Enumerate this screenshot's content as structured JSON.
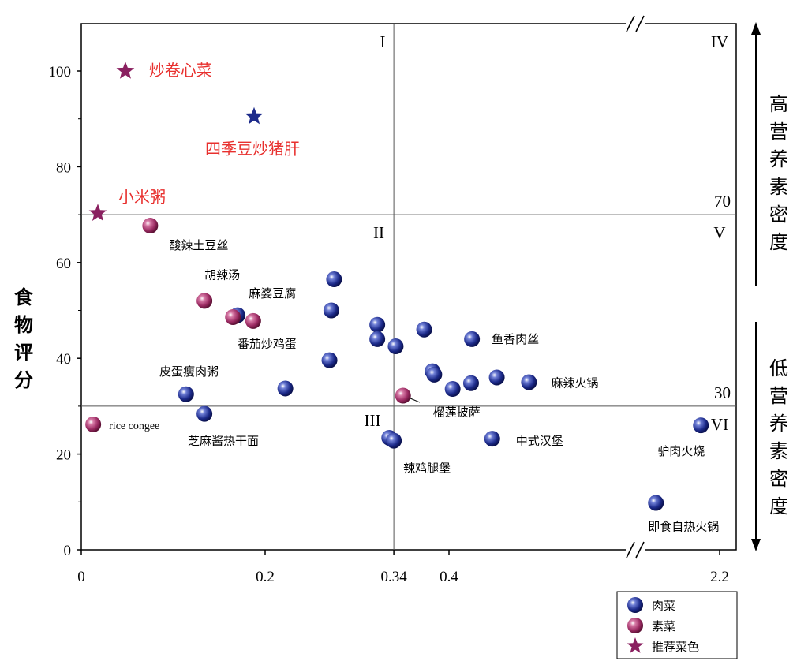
{
  "chart_data": {
    "type": "scatter",
    "title": "",
    "xlabel": "",
    "ylabel": "食物评分",
    "x_ticks": [
      "0",
      "0.2",
      "0.34",
      "0.4",
      "2.2"
    ],
    "y_ticks": [
      "0",
      "20",
      "40",
      "60",
      "80",
      "100"
    ],
    "ylim": [
      0,
      110
    ],
    "x_axis_break": {
      "after": 0.6,
      "resumes_at": 2.0
    },
    "x_threshold": 0.34,
    "y_thresholds": [
      {
        "value": 30,
        "label": "30"
      },
      {
        "value": 70,
        "label": "70"
      }
    ],
    "quadrants": [
      "I",
      "II",
      "III",
      "IV",
      "V",
      "VI"
    ],
    "side_labels": {
      "top": "高营养素密度",
      "bottom": "低营养素密度"
    },
    "colors": {
      "meat": "#1c2a8a",
      "veg": "#9b2a62",
      "recommended_red": "#e8302e",
      "star_purple": "#8a2060",
      "star_blue": "#1c2a8a"
    },
    "legend": {
      "position": "bottom-right",
      "items": [
        {
          "key": "meat",
          "label": "肉菜",
          "marker": "ball"
        },
        {
          "key": "veg",
          "label": "素菜",
          "marker": "ball"
        },
        {
          "key": "rec",
          "label": "推荐菜色",
          "marker": "star"
        }
      ]
    },
    "series": [
      {
        "name": "肉菜",
        "points": [
          {
            "x": 0.275,
            "y": 56.5
          },
          {
            "x": 0.17,
            "y": 49
          },
          {
            "x": 0.272,
            "y": 50
          },
          {
            "x": 0.322,
            "y": 47
          },
          {
            "x": 0.322,
            "y": 44
          },
          {
            "x": 0.342,
            "y": 42.5
          },
          {
            "x": 0.373,
            "y": 46
          },
          {
            "x": 0.425,
            "y": 44,
            "label": "鱼香肉丝"
          },
          {
            "x": 0.27,
            "y": 39.6
          },
          {
            "x": 0.222,
            "y": 33.7
          },
          {
            "x": 0.382,
            "y": 37.3
          },
          {
            "x": 0.384,
            "y": 36.6
          },
          {
            "x": 0.404,
            "y": 33.6
          },
          {
            "x": 0.424,
            "y": 34.8
          },
          {
            "x": 0.452,
            "y": 36
          },
          {
            "x": 0.487,
            "y": 35,
            "label": "麻辣火锅"
          },
          {
            "x": 0.114,
            "y": 32.5
          },
          {
            "x": 0.134,
            "y": 28.4
          },
          {
            "x": 0.335,
            "y": 23.4
          },
          {
            "x": 0.34,
            "y": 22.8,
            "label": "辣鸡腿堡"
          },
          {
            "x": 0.447,
            "y": 23.2,
            "label": "中式汉堡"
          },
          {
            "x": 2.15,
            "y": 26,
            "label": "驴肉火烧"
          },
          {
            "x": 2.03,
            "y": 9.8,
            "label": "即食自热火锅"
          }
        ]
      },
      {
        "name": "素菜",
        "points": [
          {
            "x": 0.075,
            "y": 67.7,
            "label": "酸辣土豆丝"
          },
          {
            "x": 0.134,
            "y": 52,
            "label": "胡辣汤"
          },
          {
            "x": 0.165,
            "y": 48.6,
            "label": "麻婆豆腐"
          },
          {
            "x": 0.187,
            "y": 47.8,
            "label": "番茄炒鸡蛋"
          },
          {
            "x": 0.35,
            "y": 32.2,
            "label": "榴莲披萨"
          },
          {
            "x": 0.013,
            "y": 26.2,
            "label": "rice congee"
          }
        ]
      },
      {
        "name": "推荐菜色",
        "points": [
          {
            "x": 0.048,
            "y": 100,
            "label": "炒卷心菜"
          },
          {
            "x": 0.188,
            "y": 90.5,
            "label": "四季豆炒猪肝"
          },
          {
            "x": 0.018,
            "y": 70.3,
            "label": "小米粥"
          }
        ]
      }
    ],
    "extra_labels": [
      "皮蛋瘦肉粥",
      "芝麻酱热干面"
    ]
  }
}
